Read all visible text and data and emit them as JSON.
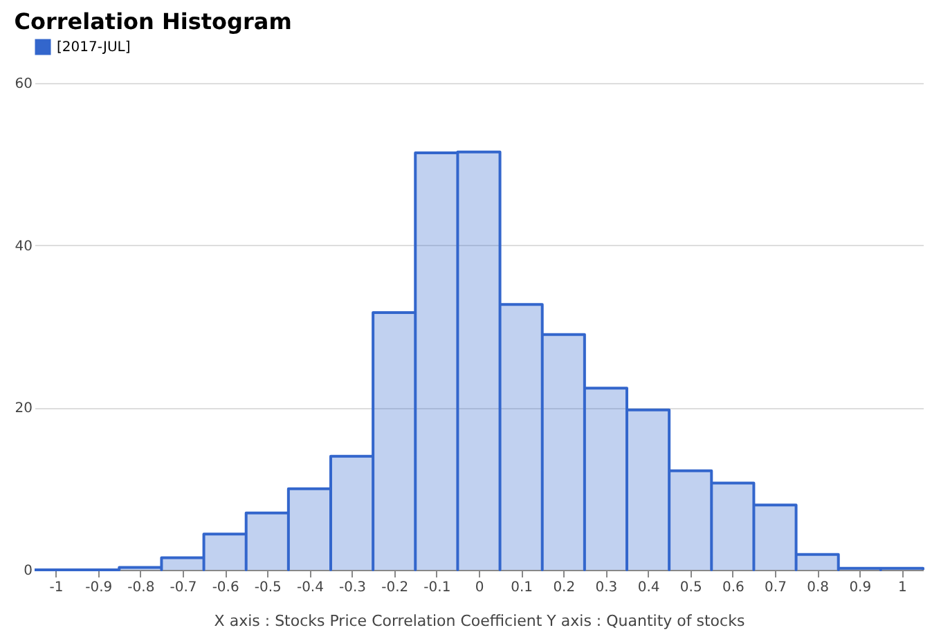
{
  "chart_data": {
    "type": "histogram",
    "title": "Correlation Histogram",
    "xlabel": "X axis : Stocks Price Correlation Coefficient  Y axis : Quantity of stocks",
    "bins": [
      -1.05,
      -0.95,
      -0.85,
      -0.75,
      -0.65,
      -0.55,
      -0.45,
      -0.35,
      -0.25,
      -0.15,
      -0.05,
      0.05,
      0.15,
      0.25,
      0.35,
      0.45,
      0.55,
      0.65,
      0.75,
      0.85,
      0.95,
      1.05
    ],
    "series": [
      {
        "name": "[2017-JUL]",
        "color": "#3366cc",
        "values": [
          0,
          0,
          0.3,
          1.5,
          4.4,
          7,
          10,
          14,
          31.7,
          51.4,
          51.5,
          32.7,
          29,
          22.4,
          19.7,
          12.2,
          10.7,
          8,
          1.9,
          0.2,
          0.2
        ]
      }
    ],
    "xlim": [
      -1.05,
      1.05
    ],
    "xticks": [
      -1,
      -0.9,
      -0.8,
      -0.7,
      -0.6,
      -0.5,
      -0.4,
      -0.3,
      -0.2,
      -0.1,
      0,
      0.1,
      0.2,
      0.3,
      0.4,
      0.5,
      0.6,
      0.7,
      0.8,
      0.9,
      1
    ],
    "ylim": [
      0,
      60
    ],
    "yticks": [
      0,
      20,
      40,
      60
    ],
    "grid": "y",
    "legend": "top"
  }
}
